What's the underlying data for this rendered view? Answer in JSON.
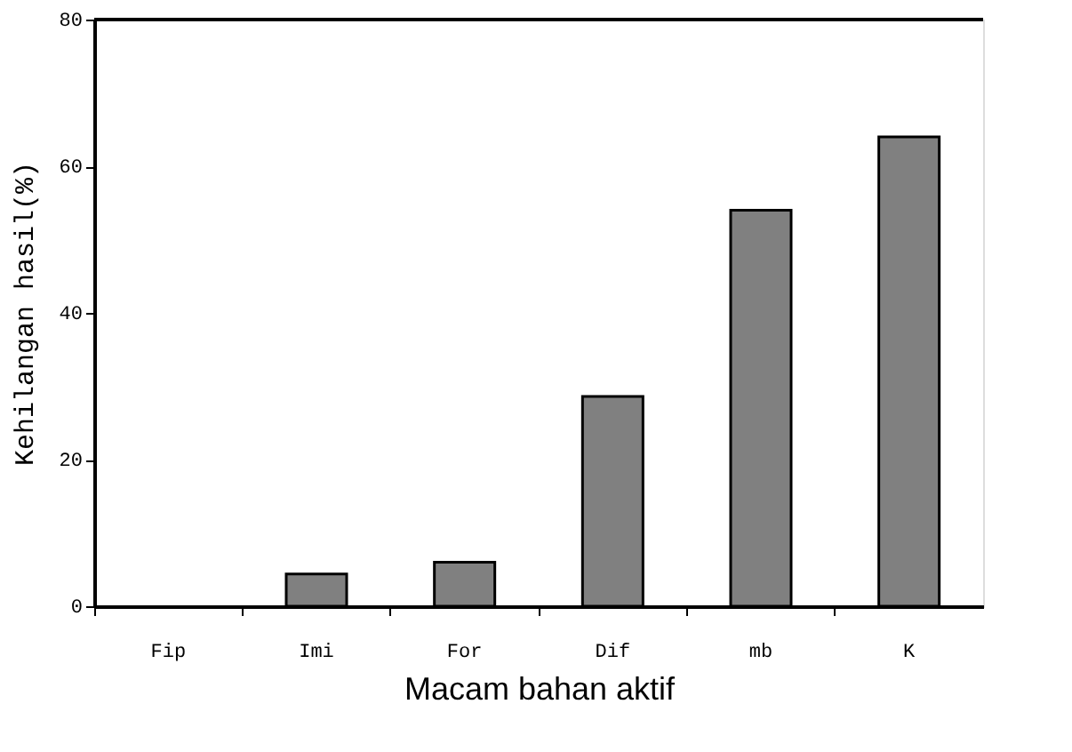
{
  "chart_data": {
    "type": "bar",
    "xlabel": "Macam bahan aktif",
    "ylabel": "Kehilangan hasil(%)",
    "categories": [
      "Fip",
      "Imi",
      "For",
      "Dif",
      "mb",
      "K"
    ],
    "values": [
      null,
      4.4,
      6.0,
      28.6,
      54.0,
      64.0
    ],
    "color": "#808080",
    "ylim": [
      0,
      80
    ],
    "yticks": [
      0,
      20,
      40,
      60,
      80
    ],
    "grid": false
  }
}
